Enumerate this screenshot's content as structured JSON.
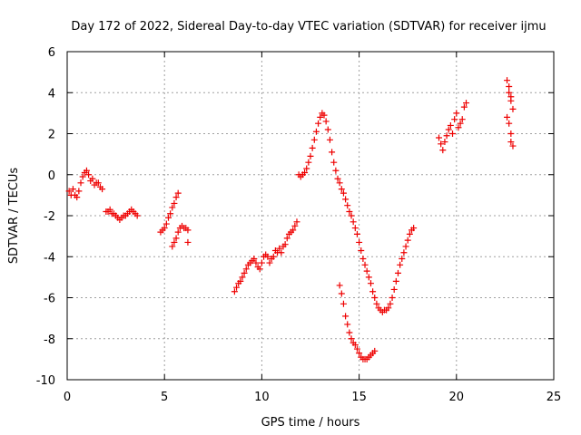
{
  "chart_data": {
    "type": "scatter",
    "title": "Day 172 of 2022, Sidereal Day-to-day VTEC variation (SDTVAR) for receiver ijmu",
    "xlabel": "GPS time / hours",
    "ylabel": "SDTVAR / TECUs",
    "xlim": [
      0,
      25
    ],
    "ylim": [
      -10,
      6
    ],
    "xticks": [
      "0",
      "5",
      "10",
      "15",
      "20",
      "25"
    ],
    "yticks": [
      "-10",
      "-8",
      "-6",
      "-4",
      "-2",
      "0",
      "2",
      "4",
      "6"
    ],
    "grid": true,
    "marker": "plus",
    "color": "#ee0000",
    "series": [
      {
        "points": [
          [
            0.1,
            -0.8
          ],
          [
            0.2,
            -1.0
          ],
          [
            0.3,
            -0.7
          ],
          [
            0.4,
            -1.0
          ],
          [
            0.5,
            -1.1
          ],
          [
            0.6,
            -0.8
          ],
          [
            0.7,
            -0.4
          ],
          [
            0.8,
            -0.1
          ],
          [
            0.9,
            0.1
          ],
          [
            1.0,
            0.2
          ],
          [
            1.1,
            0.0
          ],
          [
            1.2,
            -0.3
          ],
          [
            1.3,
            -0.2
          ],
          [
            1.4,
            -0.5
          ],
          [
            1.5,
            -0.4
          ],
          [
            1.6,
            -0.4
          ],
          [
            1.7,
            -0.6
          ],
          [
            1.8,
            -0.7
          ]
        ]
      },
      {
        "points": [
          [
            2.0,
            -1.8
          ],
          [
            2.1,
            -1.8
          ],
          [
            2.2,
            -1.7
          ],
          [
            2.3,
            -1.9
          ],
          [
            2.4,
            -1.9
          ],
          [
            2.5,
            -2.0
          ],
          [
            2.6,
            -2.1
          ],
          [
            2.7,
            -2.2
          ],
          [
            2.8,
            -2.1
          ],
          [
            2.9,
            -2.0
          ],
          [
            3.0,
            -2.0
          ],
          [
            3.1,
            -1.9
          ],
          [
            3.2,
            -1.8
          ],
          [
            3.3,
            -1.7
          ],
          [
            3.4,
            -1.8
          ],
          [
            3.5,
            -1.9
          ],
          [
            3.6,
            -2.0
          ]
        ]
      },
      {
        "points": [
          [
            4.8,
            -2.8
          ],
          [
            4.9,
            -2.7
          ],
          [
            5.0,
            -2.6
          ],
          [
            5.1,
            -2.4
          ],
          [
            5.2,
            -2.1
          ],
          [
            5.3,
            -1.9
          ],
          [
            5.4,
            -1.6
          ],
          [
            5.5,
            -1.4
          ],
          [
            5.6,
            -1.1
          ],
          [
            5.7,
            -0.9
          ]
        ]
      },
      {
        "points": [
          [
            5.4,
            -3.5
          ],
          [
            5.5,
            -3.3
          ],
          [
            5.6,
            -3.1
          ],
          [
            5.7,
            -2.8
          ],
          [
            5.8,
            -2.6
          ],
          [
            5.9,
            -2.5
          ],
          [
            6.0,
            -2.6
          ],
          [
            6.1,
            -2.6
          ],
          [
            6.2,
            -2.7
          ],
          [
            6.2,
            -3.3
          ]
        ]
      },
      {
        "points": [
          [
            8.6,
            -5.7
          ],
          [
            8.7,
            -5.5
          ],
          [
            8.8,
            -5.3
          ],
          [
            8.9,
            -5.2
          ],
          [
            9.0,
            -5.0
          ],
          [
            9.1,
            -4.8
          ],
          [
            9.2,
            -4.6
          ],
          [
            9.3,
            -4.4
          ],
          [
            9.4,
            -4.3
          ],
          [
            9.5,
            -4.2
          ],
          [
            9.6,
            -4.1
          ],
          [
            9.7,
            -4.3
          ],
          [
            9.8,
            -4.5
          ],
          [
            9.9,
            -4.6
          ],
          [
            10.0,
            -4.3
          ],
          [
            10.1,
            -4.0
          ],
          [
            10.2,
            -3.9
          ],
          [
            10.3,
            -4.0
          ],
          [
            10.4,
            -4.3
          ],
          [
            10.5,
            -4.1
          ],
          [
            10.6,
            -4.0
          ],
          [
            10.7,
            -3.7
          ],
          [
            10.8,
            -3.8
          ],
          [
            10.9,
            -3.6
          ],
          [
            11.0,
            -3.8
          ],
          [
            11.1,
            -3.5
          ],
          [
            11.2,
            -3.4
          ],
          [
            11.3,
            -3.1
          ],
          [
            11.4,
            -2.9
          ],
          [
            11.5,
            -2.8
          ],
          [
            11.6,
            -2.7
          ],
          [
            11.7,
            -2.5
          ],
          [
            11.8,
            -2.3
          ]
        ]
      },
      {
        "points": [
          [
            11.9,
            0.0
          ],
          [
            12.0,
            -0.1
          ],
          [
            12.1,
            0.0
          ],
          [
            12.2,
            0.1
          ],
          [
            12.3,
            0.3
          ],
          [
            12.4,
            0.6
          ],
          [
            12.5,
            0.9
          ],
          [
            12.6,
            1.3
          ],
          [
            12.7,
            1.7
          ],
          [
            12.8,
            2.1
          ],
          [
            12.9,
            2.5
          ],
          [
            13.0,
            2.8
          ],
          [
            13.1,
            3.0
          ],
          [
            13.2,
            2.9
          ],
          [
            13.3,
            2.6
          ],
          [
            13.4,
            2.2
          ],
          [
            13.5,
            1.7
          ],
          [
            13.6,
            1.1
          ],
          [
            13.7,
            0.6
          ],
          [
            13.8,
            0.2
          ],
          [
            13.9,
            -0.2
          ],
          [
            14.0,
            -0.4
          ],
          [
            14.1,
            -0.7
          ],
          [
            14.2,
            -0.9
          ],
          [
            14.3,
            -1.2
          ],
          [
            14.4,
            -1.5
          ],
          [
            14.5,
            -1.8
          ],
          [
            14.6,
            -2.0
          ],
          [
            14.7,
            -2.3
          ],
          [
            14.8,
            -2.6
          ],
          [
            14.9,
            -2.9
          ],
          [
            15.0,
            -3.3
          ],
          [
            15.1,
            -3.7
          ],
          [
            15.2,
            -4.1
          ],
          [
            15.3,
            -4.4
          ],
          [
            15.4,
            -4.7
          ],
          [
            15.5,
            -5.0
          ],
          [
            15.6,
            -5.3
          ],
          [
            15.7,
            -5.7
          ],
          [
            15.8,
            -6.0
          ],
          [
            15.9,
            -6.3
          ],
          [
            16.0,
            -6.5
          ],
          [
            16.1,
            -6.6
          ],
          [
            16.2,
            -6.7
          ],
          [
            16.3,
            -6.6
          ],
          [
            16.4,
            -6.6
          ],
          [
            16.5,
            -6.5
          ],
          [
            16.6,
            -6.3
          ],
          [
            16.7,
            -6.0
          ],
          [
            16.8,
            -5.6
          ],
          [
            16.9,
            -5.2
          ],
          [
            17.0,
            -4.8
          ],
          [
            17.1,
            -4.4
          ],
          [
            17.2,
            -4.1
          ],
          [
            17.3,
            -3.8
          ],
          [
            17.4,
            -3.5
          ],
          [
            17.5,
            -3.2
          ],
          [
            17.6,
            -2.9
          ],
          [
            17.7,
            -2.7
          ],
          [
            17.8,
            -2.6
          ]
        ]
      },
      {
        "points": [
          [
            14.0,
            -5.4
          ],
          [
            14.1,
            -5.8
          ],
          [
            14.2,
            -6.3
          ],
          [
            14.3,
            -6.9
          ],
          [
            14.4,
            -7.3
          ],
          [
            14.5,
            -7.7
          ],
          [
            14.6,
            -8.0
          ],
          [
            14.7,
            -8.2
          ],
          [
            14.8,
            -8.3
          ],
          [
            14.9,
            -8.5
          ],
          [
            15.0,
            -8.7
          ],
          [
            15.1,
            -8.9
          ],
          [
            15.2,
            -9.0
          ],
          [
            15.3,
            -9.0
          ],
          [
            15.4,
            -9.0
          ],
          [
            15.5,
            -8.9
          ],
          [
            15.6,
            -8.8
          ],
          [
            15.7,
            -8.7
          ],
          [
            15.8,
            -8.6
          ]
        ]
      },
      {
        "points": [
          [
            19.1,
            1.8
          ],
          [
            19.2,
            1.5
          ],
          [
            19.3,
            1.2
          ],
          [
            19.4,
            1.6
          ],
          [
            19.5,
            1.9
          ],
          [
            19.6,
            2.2
          ],
          [
            19.7,
            2.4
          ],
          [
            19.8,
            2.0
          ],
          [
            19.9,
            2.7
          ],
          [
            20.0,
            3.0
          ],
          [
            20.1,
            2.3
          ],
          [
            20.2,
            2.5
          ],
          [
            20.3,
            2.7
          ],
          [
            20.4,
            3.3
          ],
          [
            20.5,
            3.5
          ]
        ]
      },
      {
        "points": [
          [
            22.6,
            4.6
          ],
          [
            22.7,
            4.3
          ],
          [
            22.7,
            4.0
          ],
          [
            22.8,
            3.8
          ],
          [
            22.8,
            3.6
          ],
          [
            22.9,
            3.2
          ],
          [
            22.6,
            2.8
          ],
          [
            22.7,
            2.5
          ],
          [
            22.8,
            2.0
          ],
          [
            22.8,
            1.6
          ],
          [
            22.9,
            1.4
          ]
        ]
      }
    ]
  }
}
